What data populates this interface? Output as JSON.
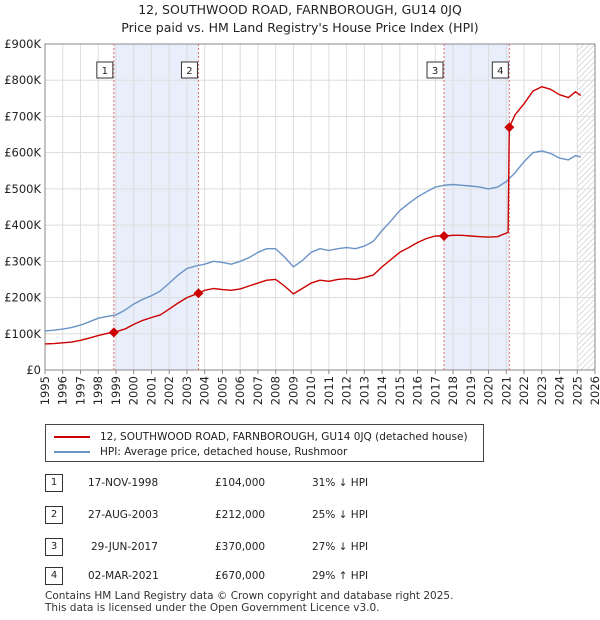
{
  "title_line1": "12, SOUTHWOOD ROAD, FARNBOROUGH, GU14 0JQ",
  "title_line2": "Price paid vs. HM Land Registry's House Price Index (HPI)",
  "chart_data": {
    "type": "line",
    "title": "12, SOUTHWOOD ROAD, FARNBOROUGH, GU14 0JQ — Price paid vs. HM Land Registry's House Price Index (HPI)",
    "xlim": [
      1995,
      2026
    ],
    "ylim": [
      0,
      900000
    ],
    "x_ticks": [
      "1995",
      "1996",
      "1997",
      "1998",
      "1999",
      "2000",
      "2001",
      "2002",
      "2003",
      "2004",
      "2005",
      "2006",
      "2007",
      "2008",
      "2009",
      "2010",
      "2011",
      "2012",
      "2013",
      "2014",
      "2015",
      "2016",
      "2017",
      "2018",
      "2019",
      "2020",
      "2021",
      "2022",
      "2023",
      "2024",
      "2025",
      "2026"
    ],
    "y_ticks": [
      {
        "value": 0,
        "label": "£0"
      },
      {
        "value": 100000,
        "label": "£100K"
      },
      {
        "value": 200000,
        "label": "£200K"
      },
      {
        "value": 300000,
        "label": "£300K"
      },
      {
        "value": 400000,
        "label": "£400K"
      },
      {
        "value": 500000,
        "label": "£500K"
      },
      {
        "value": 600000,
        "label": "£600K"
      },
      {
        "value": 700000,
        "label": "£700K"
      },
      {
        "value": 800000,
        "label": "£800K"
      },
      {
        "value": 900000,
        "label": "£900K"
      }
    ],
    "grid": true,
    "shaded_periods": [
      [
        1998.88,
        2003.65
      ],
      [
        2017.49,
        2021.17
      ]
    ],
    "hatched_from": 2025.0,
    "series": [
      {
        "name": "12, SOUTHWOOD ROAD, FARNBOROUGH, GU14 0JQ (detached house)",
        "color": "#cc0000",
        "points": [
          [
            1995.0,
            72000
          ],
          [
            1995.5,
            73000
          ],
          [
            1996.0,
            75000
          ],
          [
            1996.5,
            77000
          ],
          [
            1997.0,
            82000
          ],
          [
            1997.5,
            88000
          ],
          [
            1998.0,
            95000
          ],
          [
            1998.5,
            101000
          ],
          [
            1998.88,
            104000
          ],
          [
            1999.5,
            113000
          ],
          [
            2000.0,
            126000
          ],
          [
            2000.5,
            137000
          ],
          [
            2001.0,
            145000
          ],
          [
            2001.5,
            152000
          ],
          [
            2002.0,
            168000
          ],
          [
            2002.5,
            185000
          ],
          [
            2003.0,
            200000
          ],
          [
            2003.65,
            212000
          ],
          [
            2004.0,
            220000
          ],
          [
            2004.5,
            225000
          ],
          [
            2005.0,
            222000
          ],
          [
            2005.5,
            220000
          ],
          [
            2006.0,
            224000
          ],
          [
            2006.5,
            232000
          ],
          [
            2007.0,
            240000
          ],
          [
            2007.5,
            248000
          ],
          [
            2008.0,
            250000
          ],
          [
            2008.5,
            232000
          ],
          [
            2009.0,
            210000
          ],
          [
            2009.5,
            225000
          ],
          [
            2010.0,
            240000
          ],
          [
            2010.5,
            248000
          ],
          [
            2011.0,
            245000
          ],
          [
            2011.5,
            250000
          ],
          [
            2012.0,
            252000
          ],
          [
            2012.5,
            250000
          ],
          [
            2013.0,
            255000
          ],
          [
            2013.5,
            262000
          ],
          [
            2014.0,
            285000
          ],
          [
            2014.5,
            305000
          ],
          [
            2015.0,
            325000
          ],
          [
            2015.5,
            338000
          ],
          [
            2016.0,
            352000
          ],
          [
            2016.5,
            363000
          ],
          [
            2017.0,
            370000
          ],
          [
            2017.49,
            370000
          ],
          [
            2018.0,
            372000
          ],
          [
            2018.5,
            372000
          ],
          [
            2019.0,
            370000
          ],
          [
            2019.5,
            368000
          ],
          [
            2020.0,
            367000
          ],
          [
            2020.5,
            368000
          ],
          [
            2021.1,
            380000
          ],
          [
            2021.17,
            670000
          ],
          [
            2021.5,
            705000
          ],
          [
            2022.0,
            735000
          ],
          [
            2022.5,
            770000
          ],
          [
            2023.0,
            782000
          ],
          [
            2023.5,
            775000
          ],
          [
            2024.0,
            760000
          ],
          [
            2024.5,
            752000
          ],
          [
            2024.9,
            768000
          ],
          [
            2025.2,
            758000
          ]
        ]
      },
      {
        "name": "HPI: Average price, detached house, Rushmoor",
        "color": "#6a93c6",
        "points": [
          [
            1995.0,
            108000
          ],
          [
            1995.5,
            110000
          ],
          [
            1996.0,
            113000
          ],
          [
            1996.5,
            117000
          ],
          [
            1997.0,
            124000
          ],
          [
            1997.5,
            133000
          ],
          [
            1998.0,
            143000
          ],
          [
            1998.5,
            148000
          ],
          [
            1999.0,
            152000
          ],
          [
            1999.5,
            165000
          ],
          [
            2000.0,
            182000
          ],
          [
            2000.5,
            195000
          ],
          [
            2001.0,
            205000
          ],
          [
            2001.5,
            218000
          ],
          [
            2002.0,
            240000
          ],
          [
            2002.5,
            262000
          ],
          [
            2003.0,
            280000
          ],
          [
            2003.5,
            287000
          ],
          [
            2004.0,
            292000
          ],
          [
            2004.5,
            300000
          ],
          [
            2005.0,
            297000
          ],
          [
            2005.5,
            292000
          ],
          [
            2006.0,
            300000
          ],
          [
            2006.5,
            310000
          ],
          [
            2007.0,
            325000
          ],
          [
            2007.5,
            335000
          ],
          [
            2008.0,
            335000
          ],
          [
            2008.5,
            312000
          ],
          [
            2009.0,
            285000
          ],
          [
            2009.5,
            302000
          ],
          [
            2010.0,
            325000
          ],
          [
            2010.5,
            335000
          ],
          [
            2011.0,
            330000
          ],
          [
            2011.5,
            335000
          ],
          [
            2012.0,
            338000
          ],
          [
            2012.5,
            335000
          ],
          [
            2013.0,
            342000
          ],
          [
            2013.5,
            355000
          ],
          [
            2014.0,
            385000
          ],
          [
            2014.5,
            412000
          ],
          [
            2015.0,
            440000
          ],
          [
            2015.5,
            460000
          ],
          [
            2016.0,
            478000
          ],
          [
            2016.5,
            492000
          ],
          [
            2017.0,
            505000
          ],
          [
            2017.5,
            510000
          ],
          [
            2018.0,
            512000
          ],
          [
            2018.5,
            510000
          ],
          [
            2019.0,
            508000
          ],
          [
            2019.5,
            505000
          ],
          [
            2020.0,
            500000
          ],
          [
            2020.5,
            505000
          ],
          [
            2021.0,
            520000
          ],
          [
            2021.5,
            545000
          ],
          [
            2022.0,
            575000
          ],
          [
            2022.5,
            600000
          ],
          [
            2023.0,
            605000
          ],
          [
            2023.5,
            598000
          ],
          [
            2024.0,
            585000
          ],
          [
            2024.5,
            580000
          ],
          [
            2024.9,
            592000
          ],
          [
            2025.2,
            588000
          ]
        ]
      }
    ],
    "markers": [
      {
        "label": "1",
        "x": 1998.88,
        "y": 104000
      },
      {
        "label": "2",
        "x": 2003.65,
        "y": 212000
      },
      {
        "label": "3",
        "x": 2017.49,
        "y": 370000
      },
      {
        "label": "4",
        "x": 2021.17,
        "y": 670000
      }
    ]
  },
  "legend": [
    {
      "label": "12, SOUTHWOOD ROAD, FARNBOROUGH, GU14 0JQ (detached house)",
      "color": "#cc0000"
    },
    {
      "label": "HPI: Average price, detached house, Rushmoor",
      "color": "#6a93c6"
    }
  ],
  "sales": [
    {
      "num": "1",
      "date": "17-NOV-1998",
      "price": "£104,000",
      "hpi": "31% ↓ HPI"
    },
    {
      "num": "2",
      "date": "27-AUG-2003",
      "price": "£212,000",
      "hpi": "25% ↓ HPI"
    },
    {
      "num": "3",
      "date": "29-JUN-2017",
      "price": "£370,000",
      "hpi": "27% ↓ HPI"
    },
    {
      "num": "4",
      "date": "02-MAR-2021",
      "price": "£670,000",
      "hpi": "29% ↑ HPI"
    }
  ],
  "footer_line1": "Contains HM Land Registry data © Crown copyright and database right 2025.",
  "footer_line2": "This data is licensed under the Open Government Licence v3.0."
}
